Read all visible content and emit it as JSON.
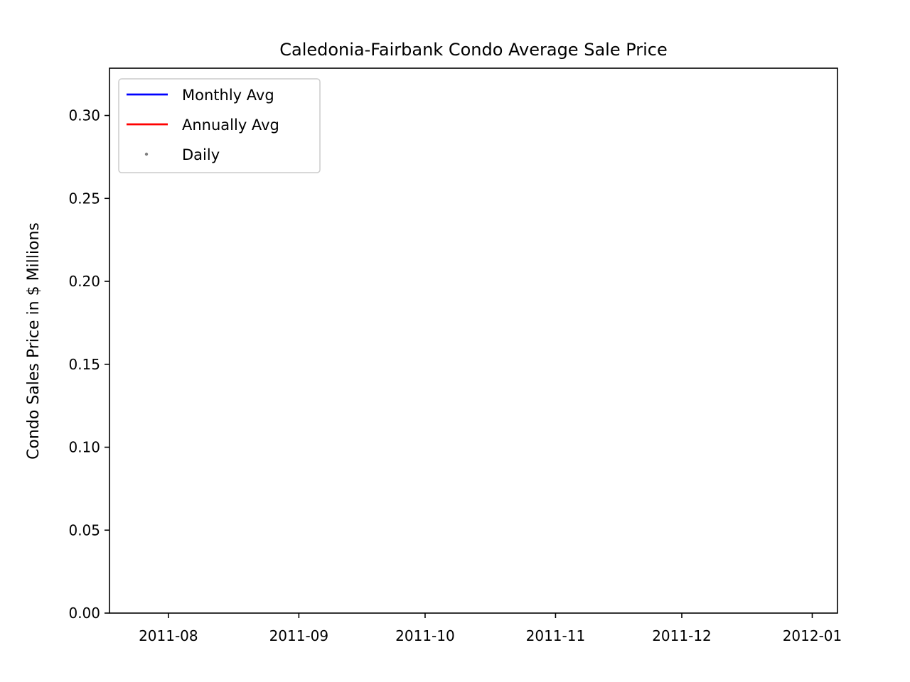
{
  "chart_data": {
    "type": "line",
    "title": "Caledonia-Fairbank Condo Average Sale Price",
    "xlabel": "",
    "ylabel": "Condo Sales Price in $ Millions",
    "x_ticks": [
      "2011-08",
      "2011-09",
      "2011-10",
      "2011-11",
      "2011-12",
      "2012-01"
    ],
    "xlim": [
      "2011-07-18",
      "2012-01-07"
    ],
    "y_ticks": [
      "0.00",
      "0.05",
      "0.10",
      "0.15",
      "0.20",
      "0.25",
      "0.30"
    ],
    "ylim": [
      0,
      0.3285
    ],
    "grid": false,
    "legend_position": "upper-left",
    "series": [
      {
        "name": "Monthly Avg",
        "kind": "line",
        "color": "#0000ff",
        "points": []
      },
      {
        "name": "Annually Avg",
        "kind": "line",
        "color": "#ff0000",
        "points": []
      },
      {
        "name": "Daily",
        "kind": "scatter",
        "color": "#808080",
        "points": []
      }
    ]
  }
}
